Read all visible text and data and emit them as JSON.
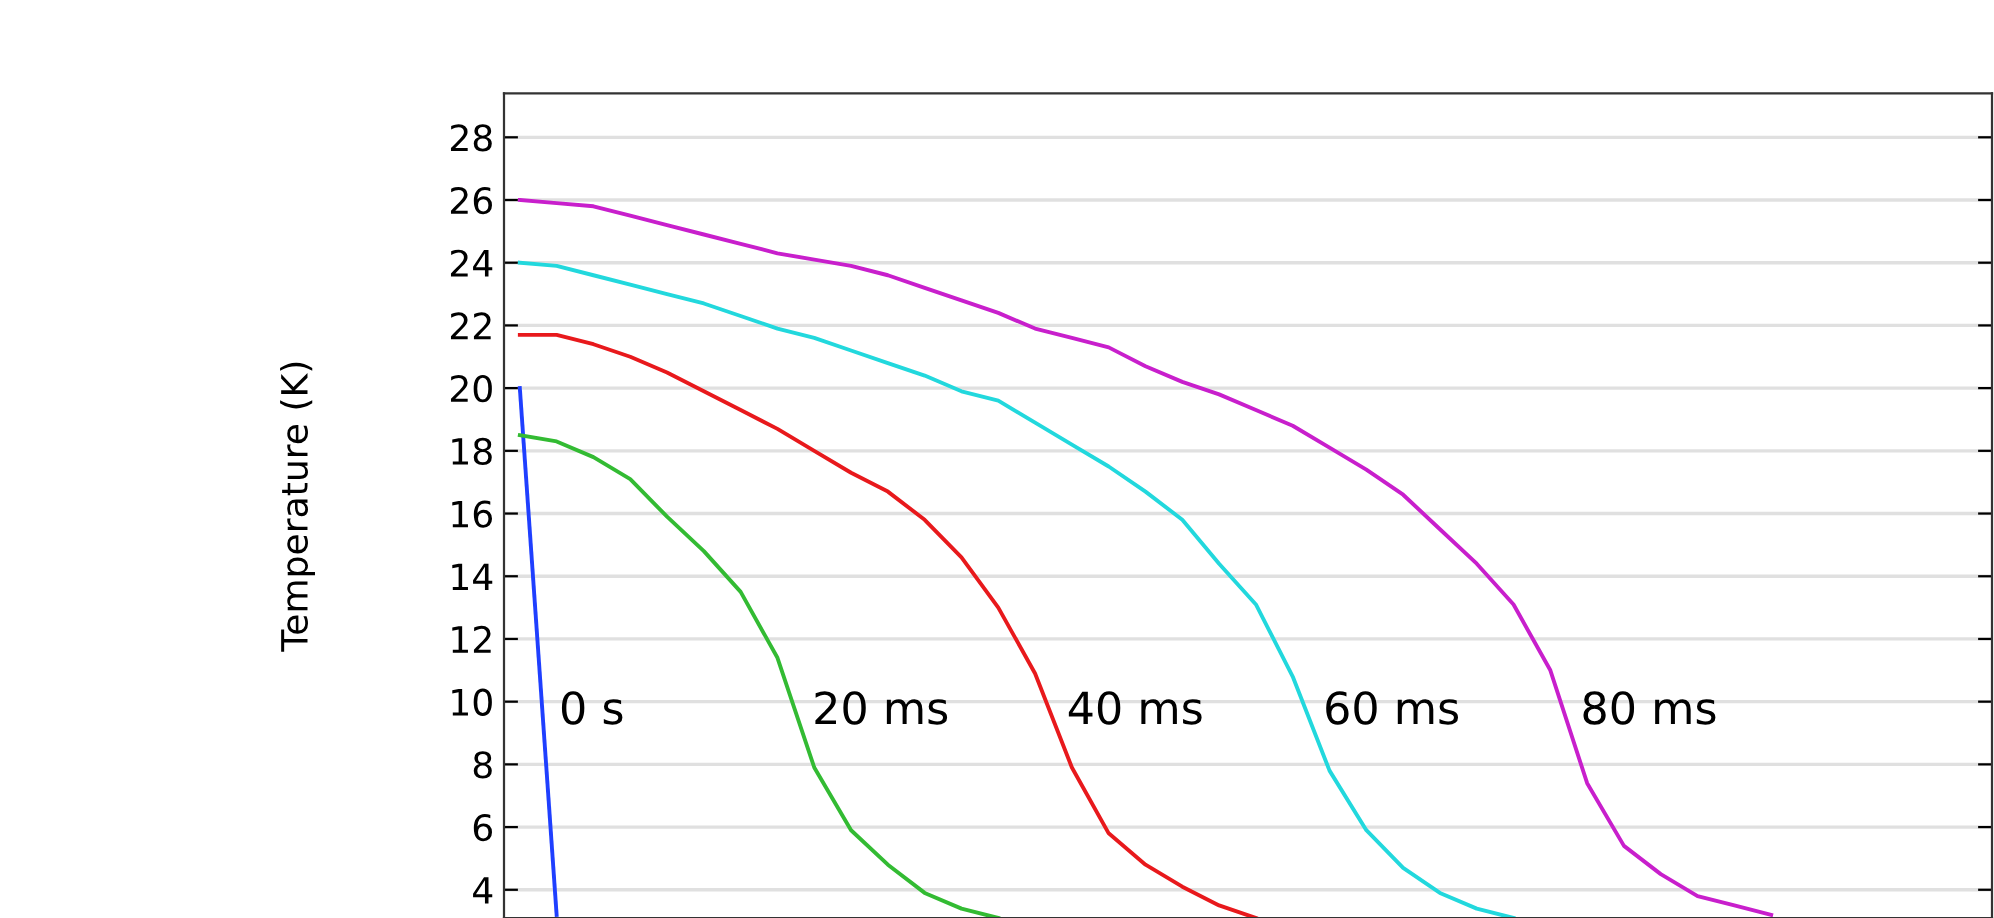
{
  "chart_data": {
    "type": "line",
    "ylabel": "Temperature (K)",
    "categories": [
      null,
      null,
      null,
      null,
      null,
      null,
      null,
      null,
      null,
      null,
      null,
      null,
      null,
      null,
      null,
      null,
      null,
      null,
      null,
      null,
      null,
      null,
      null,
      null,
      null,
      null,
      null,
      null,
      null,
      null,
      null,
      null,
      null,
      null,
      null,
      null,
      null,
      null,
      null,
      null,
      null
    ],
    "series": [
      {
        "color": "#1f3fff",
        "values": [
          20.0,
          3.2,
          null,
          null,
          null,
          null,
          null,
          null,
          null,
          null,
          null,
          null,
          null,
          null,
          null,
          null,
          null,
          null,
          null,
          null,
          null,
          null,
          null,
          null,
          null,
          null,
          null,
          null,
          null,
          null,
          null,
          null,
          null,
          null,
          null,
          null,
          null,
          null,
          null,
          null,
          null
        ]
      },
      {
        "color": "#33bb33",
        "values": [
          18.5,
          18.3,
          17.8,
          17.1,
          15.9,
          14.8,
          13.5,
          11.4,
          7.9,
          5.9,
          4.8,
          3.9,
          3.4,
          3.1,
          null,
          null,
          null,
          null,
          null,
          null,
          null,
          null,
          null,
          null,
          null,
          null,
          null,
          null,
          null,
          null,
          null,
          null,
          null,
          null,
          null,
          null,
          null,
          null,
          null,
          null,
          null
        ]
      },
      {
        "color": "#e8191c",
        "values": [
          21.7,
          21.7,
          21.4,
          21.0,
          20.5,
          19.9,
          19.3,
          18.7,
          18.0,
          17.3,
          16.7,
          15.8,
          14.6,
          13.0,
          10.9,
          7.9,
          5.8,
          4.8,
          4.1,
          3.5,
          3.1,
          null,
          null,
          null,
          null,
          null,
          null,
          null,
          null,
          null,
          null,
          null,
          null,
          null,
          null,
          null,
          null,
          null,
          null,
          null,
          null
        ]
      },
      {
        "color": "#22d8dd",
        "values": [
          24.0,
          23.9,
          23.6,
          23.3,
          23.0,
          22.7,
          22.3,
          21.9,
          21.6,
          21.2,
          20.8,
          20.4,
          19.9,
          19.6,
          18.9,
          18.2,
          17.5,
          16.7,
          15.8,
          14.4,
          13.1,
          10.8,
          7.8,
          5.9,
          4.7,
          3.9,
          3.4,
          3.1,
          null,
          null,
          null,
          null,
          null,
          null,
          null,
          null,
          null,
          null,
          null,
          null,
          null
        ]
      },
      {
        "color": "#c81fcc",
        "values": [
          26.0,
          25.9,
          25.8,
          25.5,
          25.2,
          24.9,
          24.6,
          24.3,
          24.1,
          23.9,
          23.6,
          23.2,
          22.8,
          22.4,
          21.9,
          21.6,
          21.3,
          20.7,
          20.2,
          19.8,
          19.3,
          18.8,
          18.1,
          17.4,
          16.6,
          15.5,
          14.4,
          13.1,
          11.0,
          7.4,
          5.4,
          4.5,
          3.8,
          3.5,
          3.2,
          null,
          null,
          null,
          null,
          null,
          null
        ]
      }
    ],
    "annotations": [
      "0 s",
      "20 ms",
      "40 ms",
      "60 ms",
      "80 ms"
    ],
    "ylim": [
      3.1,
      29.4
    ],
    "yticks": [
      4,
      6,
      8,
      10,
      12,
      14,
      16,
      18,
      20,
      22,
      24,
      26,
      28
    ],
    "grid": "y",
    "tick_labels": "y",
    "marker": "none",
    "line_style": "solid",
    "legend": false
  }
}
